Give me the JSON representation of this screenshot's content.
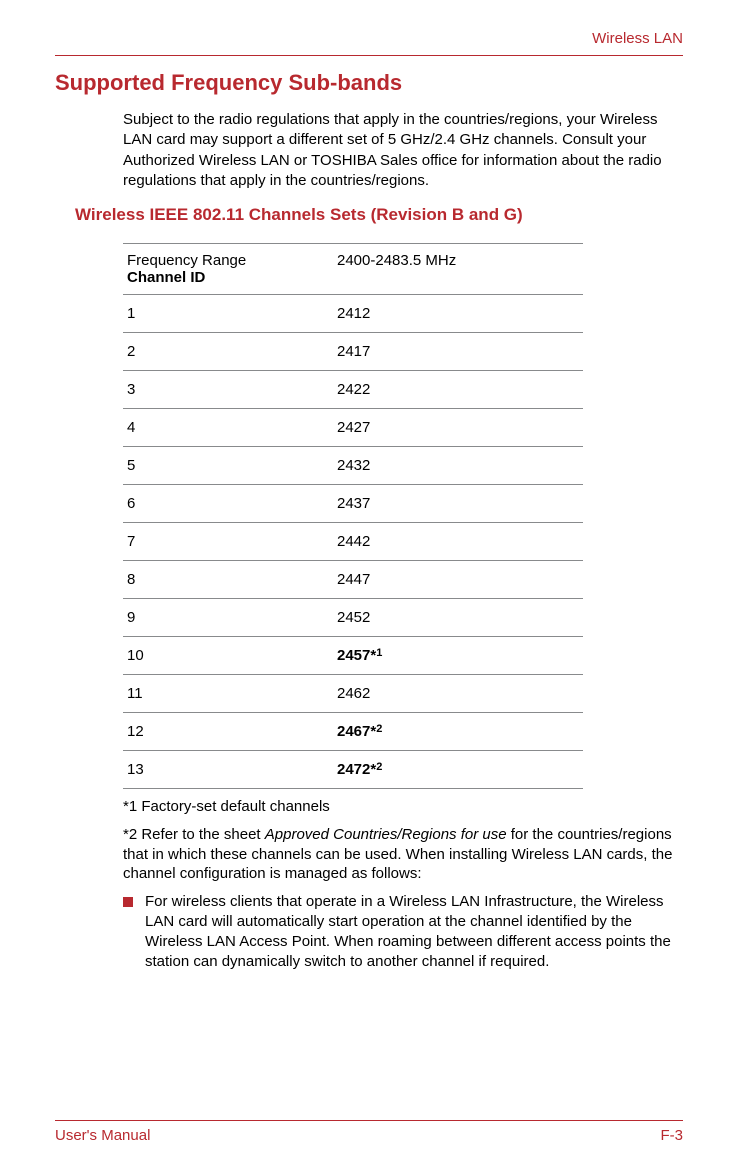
{
  "header": {
    "section": "Wireless LAN"
  },
  "title": "Supported Frequency Sub-bands",
  "intro": "Subject to the radio regulations that apply in the countries/regions, your Wireless LAN card may support a different set of 5 GHz/2.4 GHz channels. Consult your Authorized Wireless LAN or TOSHIBA Sales office for information about the radio regulations that apply in the countries/regions.",
  "subtitle": "Wireless IEEE 802.11 Channels Sets (Revision B and G)",
  "table": {
    "header_top": "Frequency Range",
    "header_bottom": "Channel ID",
    "header_value": "2400-2483.5 MHz",
    "rows": [
      {
        "id": "1",
        "value": "2412",
        "bold": false,
        "sup": ""
      },
      {
        "id": "2",
        "value": "2417",
        "bold": false,
        "sup": ""
      },
      {
        "id": "3",
        "value": "2422",
        "bold": false,
        "sup": ""
      },
      {
        "id": "4",
        "value": "2427",
        "bold": false,
        "sup": ""
      },
      {
        "id": "5",
        "value": "2432",
        "bold": false,
        "sup": ""
      },
      {
        "id": "6",
        "value": "2437",
        "bold": false,
        "sup": ""
      },
      {
        "id": "7",
        "value": "2442",
        "bold": false,
        "sup": ""
      },
      {
        "id": "8",
        "value": "2447",
        "bold": false,
        "sup": ""
      },
      {
        "id": "9",
        "value": "2452",
        "bold": false,
        "sup": ""
      },
      {
        "id": "10",
        "value": "2457*",
        "bold": true,
        "sup": "1"
      },
      {
        "id": "11",
        "value": "2462",
        "bold": false,
        "sup": ""
      },
      {
        "id": "12",
        "value": "2467*",
        "bold": true,
        "sup": "2"
      },
      {
        "id": "13",
        "value": "2472*",
        "bold": true,
        "sup": "2"
      }
    ]
  },
  "notes": {
    "n1": "*1 Factory-set default channels",
    "n2_pre": "*2 Refer to the sheet ",
    "n2_italic": "Approved Countries/Regions for use",
    "n2_post": " for the countries/regions that in which these channels can be used. When installing Wireless LAN cards, the channel configuration is managed as follows:",
    "bullet": "For wireless clients that operate in a Wireless LAN Infrastructure, the Wireless LAN card will automatically start operation at the channel identified by the Wireless LAN Access Point. When roaming between different access points the station can dynamically switch to another channel if required."
  },
  "footer": {
    "left": "User's Manual",
    "right": "F-3"
  },
  "colors": {
    "accent": "#b8292f",
    "rule": "#888a8c",
    "text": "#000000",
    "bg": "#ffffff"
  }
}
